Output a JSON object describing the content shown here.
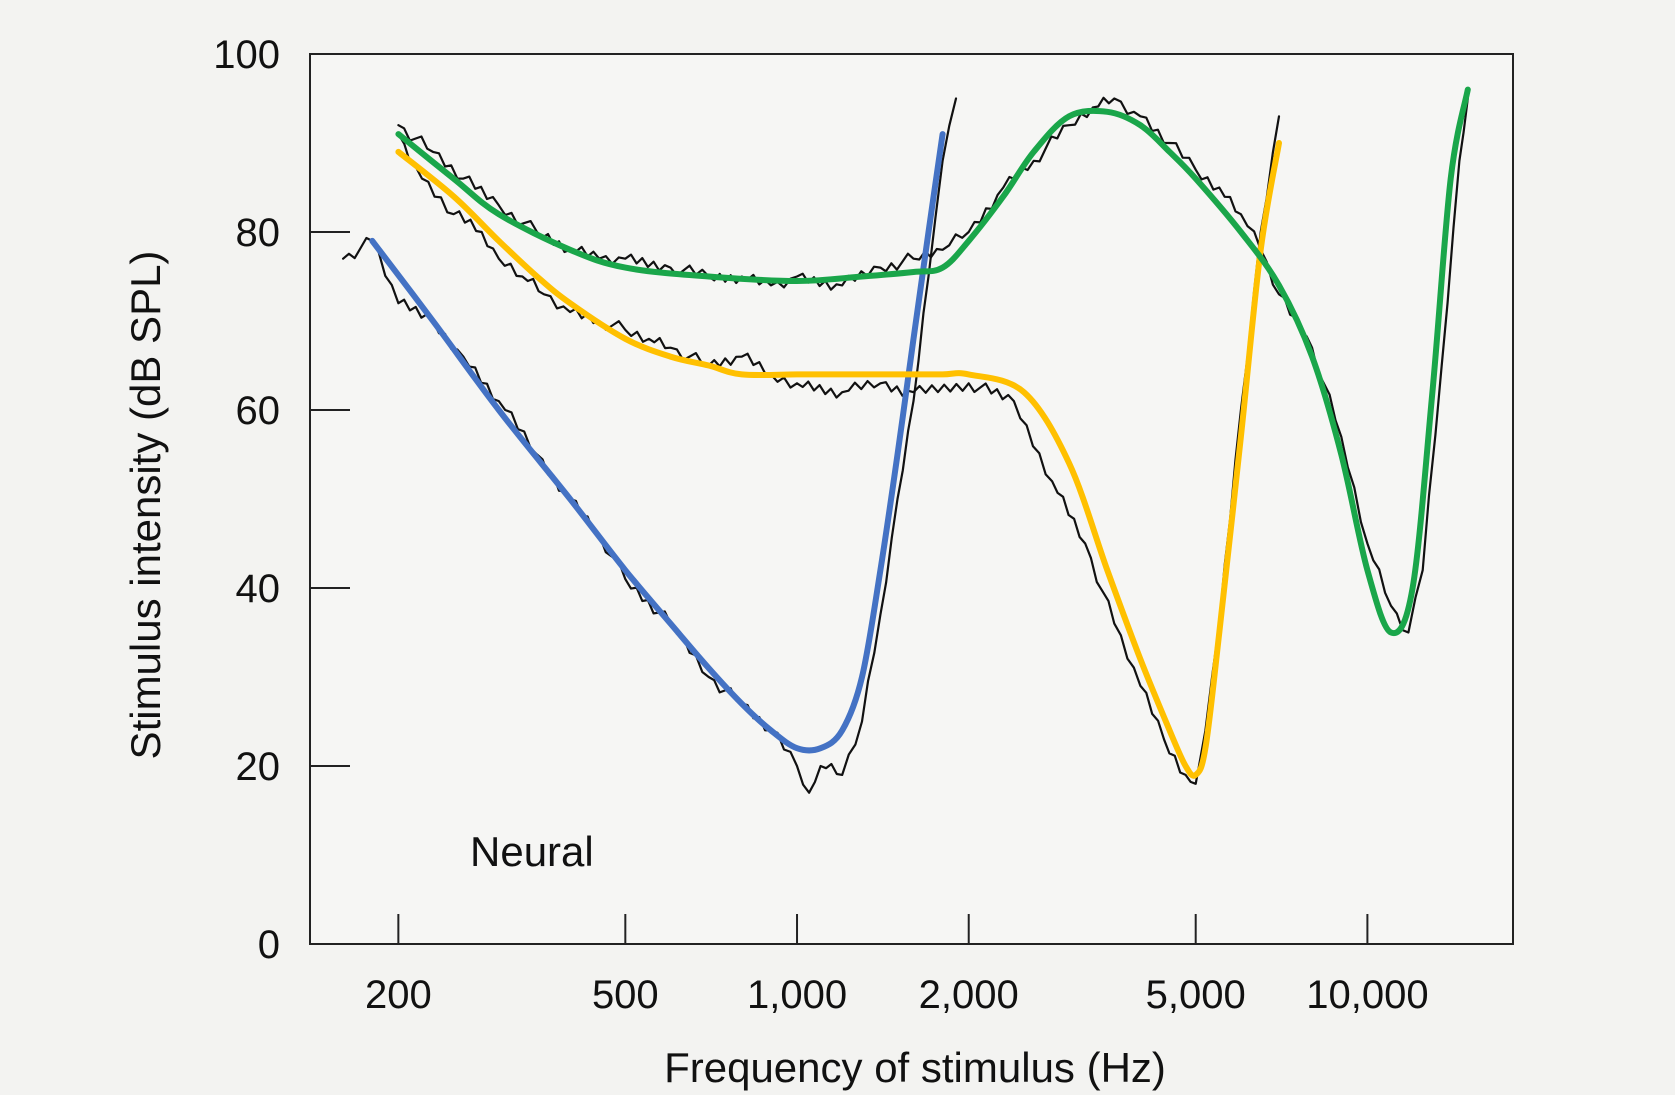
{
  "chart_data": {
    "type": "line",
    "title": "",
    "xlabel": "Frequency of stimulus (Hz)",
    "ylabel": "Stimulus intensity (dB SPL)",
    "x_scale": "log",
    "xlim": [
      140,
      18000
    ],
    "ylim": [
      0,
      100
    ],
    "x_ticks": [
      200,
      500,
      1000,
      2000,
      5000,
      10000
    ],
    "x_tick_labels": [
      "200",
      "500",
      "1,000",
      "2,000",
      "5,000",
      "10,000"
    ],
    "y_ticks": [
      0,
      20,
      40,
      60,
      80,
      100
    ],
    "y_tick_labels": [
      "0",
      "20",
      "40",
      "60",
      "80",
      "100"
    ],
    "grid": false,
    "annotation": "Neural",
    "series": [
      {
        "color": "#4472c4",
        "x": [
          180,
          230,
          300,
          400,
          500,
          600,
          700,
          800,
          900,
          1000,
          1100,
          1200,
          1300,
          1400,
          1500,
          1600,
          1700,
          1800
        ],
        "y": [
          79,
          70,
          60,
          50,
          42,
          36,
          31,
          27,
          24,
          22,
          22,
          24,
          30,
          42,
          55,
          68,
          80,
          91
        ]
      },
      {
        "color": "#ffc000",
        "x": [
          200,
          250,
          300,
          350,
          400,
          500,
          600,
          700,
          800,
          1000,
          1200,
          1500,
          1800,
          2000,
          2500,
          3000,
          3500,
          4000,
          4500,
          4800,
          5000,
          5200,
          5500,
          6000,
          6500,
          7000
        ],
        "y": [
          89,
          84,
          79,
          75,
          72,
          68,
          66,
          65,
          64,
          64,
          64,
          64,
          64,
          64,
          62,
          54,
          42,
          32,
          24,
          20,
          19,
          22,
          35,
          57,
          78,
          90
        ]
      },
      {
        "color": "#1aa64a",
        "x": [
          200,
          250,
          300,
          400,
          500,
          700,
          1000,
          1300,
          1600,
          1800,
          2000,
          2300,
          2600,
          3000,
          3500,
          4000,
          4500,
          5000,
          6000,
          7000,
          8000,
          9000,
          10000,
          11000,
          12000,
          13000,
          14000,
          15000
        ],
        "y": [
          91,
          86,
          82,
          78,
          76,
          75,
          74.5,
          75,
          75.5,
          76,
          79,
          84,
          89,
          93,
          93.5,
          92,
          89,
          86,
          80,
          74,
          66,
          55,
          42,
          35,
          40,
          62,
          86,
          96
        ]
      },
      {
        "color": "#111111",
        "x": [
          160,
          180,
          200,
          230,
          260,
          300,
          350,
          400,
          450,
          500,
          600,
          700,
          800,
          900,
          1000,
          1050,
          1100,
          1200,
          1300,
          1400,
          1500,
          1600,
          1700,
          1800,
          1900
        ],
        "y": [
          77,
          79,
          72,
          70,
          66,
          61,
          55,
          50,
          46,
          41,
          36,
          30,
          27,
          24,
          20,
          17,
          20,
          19,
          25,
          37,
          50,
          61,
          75,
          88,
          95
        ]
      },
      {
        "color": "#111111",
        "x": [
          200,
          220,
          250,
          280,
          300,
          330,
          360,
          400,
          450,
          500,
          550,
          600,
          700,
          800,
          900,
          1000,
          1200,
          1400,
          1600,
          2000,
          2400,
          2800,
          3200,
          3600,
          4000,
          4400,
          4800,
          5000,
          5200,
          5500,
          6000,
          6500,
          7000
        ],
        "y": [
          91,
          86,
          82,
          80,
          77,
          75,
          73,
          71,
          70,
          69,
          68,
          67,
          65,
          66,
          64,
          63,
          62,
          63,
          62,
          63,
          61,
          52,
          45,
          36,
          29,
          23,
          19,
          18,
          24,
          36,
          60,
          80,
          93
        ]
      },
      {
        "color": "#111111",
        "x": [
          200,
          230,
          260,
          300,
          350,
          400,
          450,
          500,
          600,
          700,
          800,
          900,
          1000,
          1200,
          1400,
          1600,
          1800,
          2000,
          2300,
          2600,
          3000,
          3300,
          3600,
          4000,
          4500,
          5000,
          5500,
          6000,
          6500,
          7000,
          8000,
          9000,
          10000,
          11000,
          11800,
          12500,
          13500,
          14500,
          15000
        ],
        "y": [
          92,
          89,
          86,
          83,
          80,
          78,
          77,
          77,
          76,
          75,
          75,
          74,
          75,
          74,
          76,
          77,
          78,
          80,
          85,
          88,
          92,
          94,
          95,
          93,
          90,
          87,
          85,
          82,
          78,
          73,
          67,
          57,
          45,
          38,
          35,
          42,
          65,
          88,
          95
        ]
      }
    ]
  }
}
